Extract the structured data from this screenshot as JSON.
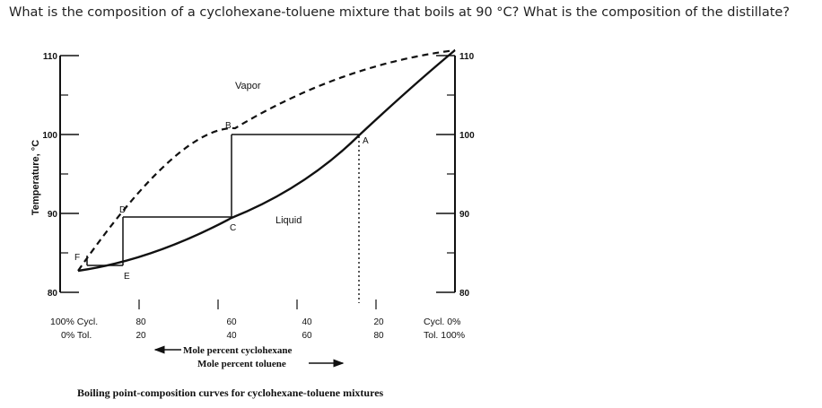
{
  "question": "What is the composition of a cyclohexane-toluene mixture that boils at 90 °C? What is the composition of the distillate?",
  "figure": {
    "y_axis_label": "Temperature, °C",
    "y_ticks_left": [
      "110",
      "100",
      "90",
      "80"
    ],
    "y_ticks_right": [
      "110",
      "100",
      "90",
      "80"
    ],
    "x_ticks_cyclohexane": [
      "80",
      "60",
      "40",
      "20"
    ],
    "x_ticks_toluene": [
      "20",
      "40",
      "60",
      "80"
    ],
    "left_end_line1": "100% Cycl.",
    "left_end_line2": "0% Tol.",
    "right_end_line1": "Cycl.  0%",
    "right_end_line2": "Tol. 100%",
    "x_label_line1": "Mole percent cyclohexane",
    "x_label_line2": "Mole percent toluene",
    "vapor_label": "Vapor",
    "liquid_label": "Liquid",
    "point_labels": {
      "A": "A",
      "B": "B",
      "C": "C",
      "D": "D",
      "E": "E",
      "F": "F"
    },
    "caption": "Boiling point-composition curves for cyclohexane-toluene mixtures"
  }
}
